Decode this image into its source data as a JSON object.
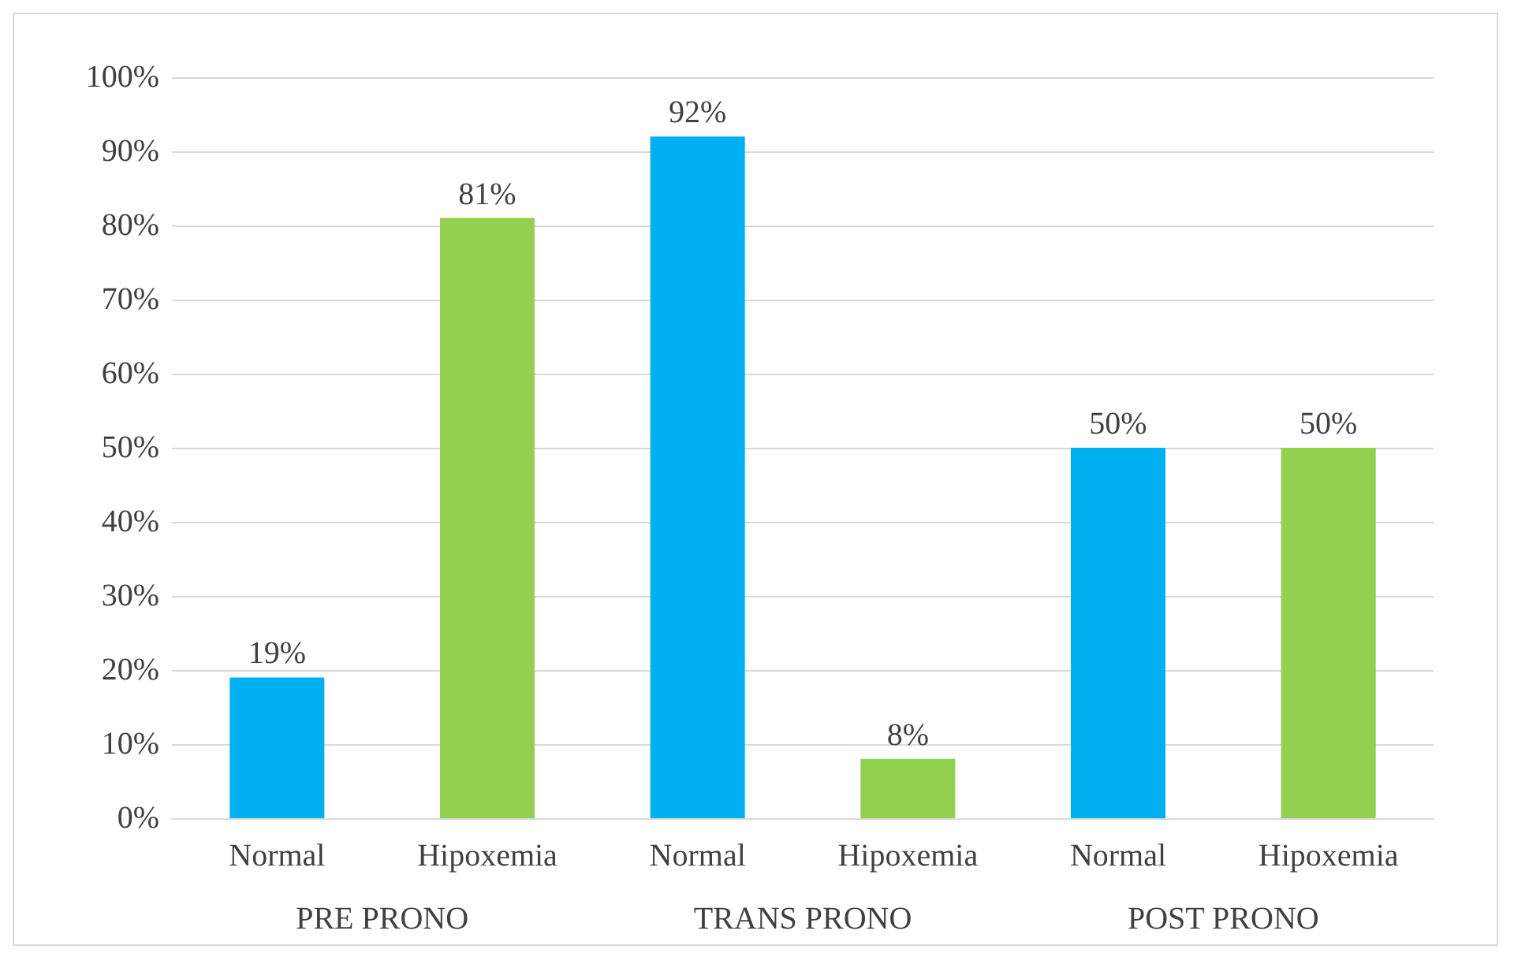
{
  "chart_data": {
    "type": "bar",
    "categories": [
      "PRE PRONO",
      "TRANS PRONO",
      "POST PRONO"
    ],
    "series": [
      {
        "name": "Normal",
        "color": "#00b0f0",
        "values": [
          19,
          92,
          50
        ],
        "value_labels": [
          "19%",
          "92%",
          "50%"
        ]
      },
      {
        "name": "Hipoxemia",
        "color": "#92d050",
        "values": [
          81,
          8,
          50
        ],
        "value_labels": [
          "81%",
          "8%",
          "50%"
        ]
      }
    ],
    "ylim": [
      0,
      100
    ],
    "yticks": [
      {
        "value": 0,
        "label": "0%"
      },
      {
        "value": 10,
        "label": "10%"
      },
      {
        "value": 20,
        "label": "20%"
      },
      {
        "value": 30,
        "label": "30%"
      },
      {
        "value": 40,
        "label": "40%"
      },
      {
        "value": 50,
        "label": "50%"
      },
      {
        "value": 60,
        "label": "60%"
      },
      {
        "value": 70,
        "label": "70%"
      },
      {
        "value": 80,
        "label": "80%"
      },
      {
        "value": 90,
        "label": "90%"
      },
      {
        "value": 100,
        "label": "100%"
      }
    ],
    "grid": true,
    "legend": false
  }
}
